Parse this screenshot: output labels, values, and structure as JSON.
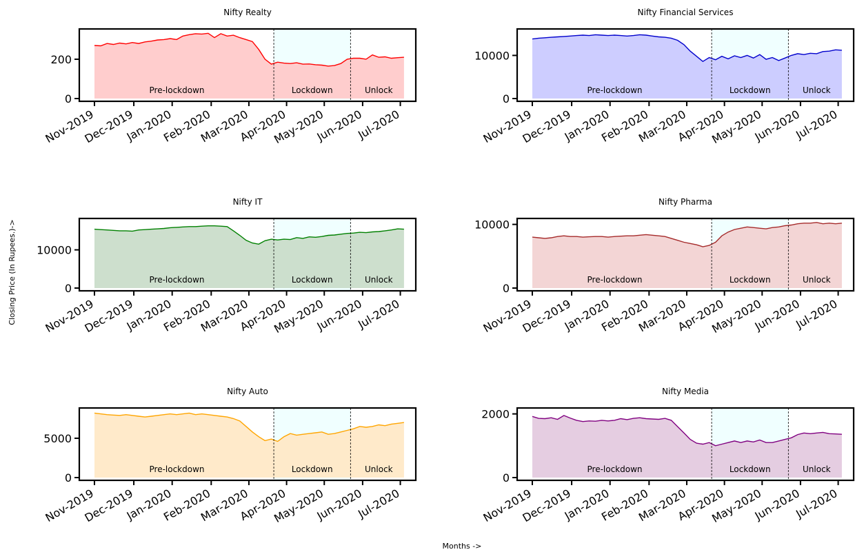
{
  "figure": {
    "ylabel": "Closing Price (In Rupees.)->",
    "xlabel": "Months ->"
  },
  "colors": {
    "lockdown_shade": "#f0ffff",
    "axes": "#000000"
  },
  "chart_data": [
    {
      "type": "area",
      "title": "Nifty Realty",
      "color": "#ff0000",
      "fill": "#ffc8c8",
      "ylim": [
        0,
        340
      ],
      "yticks": [
        0,
        200
      ],
      "ytick_labels": [
        "0",
        "200"
      ],
      "x_tick_labels": [
        "Nov-2019",
        "Dec-2019",
        "Jan-2020",
        "Feb-2020",
        "Mar-2020",
        "Apr-2020",
        "May-2020",
        "Jun-2020",
        "Jul-2020"
      ],
      "regions": [
        "Pre-lockdown",
        "Lockdown",
        "Unlock"
      ],
      "series": [
        {
          "values": [
            270,
            268,
            280,
            275,
            282,
            278,
            285,
            280,
            288,
            292,
            298,
            300,
            305,
            300,
            318,
            325,
            330,
            328,
            332,
            310,
            330,
            318,
            322,
            310,
            300,
            290,
            250,
            200,
            175,
            185,
            180,
            178,
            182,
            175,
            176,
            172,
            170,
            165,
            168,
            178,
            200,
            205,
            205,
            200,
            222,
            210,
            212,
            205,
            208,
            210
          ]
        }
      ]
    },
    {
      "type": "area",
      "title": "Nifty Financial Services",
      "color": "#0000cc",
      "fill": "#c8c8ff",
      "ylim": [
        0,
        15500
      ],
      "yticks": [
        0,
        10000
      ],
      "ytick_labels": [
        "0",
        "10000"
      ],
      "x_tick_labels": [
        "Nov-2019",
        "Dec-2019",
        "Jan-2020",
        "Feb-2020",
        "Mar-2020",
        "Apr-2020",
        "May-2020",
        "Jun-2020",
        "Jul-2020"
      ],
      "regions": [
        "Pre-lockdown",
        "Lockdown",
        "Unlock"
      ],
      "series": [
        {
          "values": [
            13800,
            14000,
            14100,
            14200,
            14300,
            14400,
            14500,
            14600,
            14700,
            14600,
            14800,
            14700,
            14600,
            14700,
            14600,
            14500,
            14600,
            14800,
            14700,
            14500,
            14300,
            14200,
            14000,
            13500,
            12500,
            11000,
            9800,
            8600,
            9500,
            9000,
            9800,
            9200,
            9900,
            9500,
            10000,
            9400,
            10200,
            9100,
            9500,
            8800,
            9400,
            10000,
            10400,
            10200,
            10500,
            10400,
            10900,
            11000,
            11300,
            11200
          ]
        }
      ]
    },
    {
      "type": "area",
      "title": "Nifty IT",
      "color": "#008000",
      "fill": "#c8dcc8",
      "ylim": [
        0,
        17500
      ],
      "yticks": [
        0,
        10000
      ],
      "ytick_labels": [
        "0",
        "10000"
      ],
      "x_tick_labels": [
        "Nov-2019",
        "Dec-2019",
        "Jan-2020",
        "Feb-2020",
        "Mar-2020",
        "Apr-2020",
        "May-2020",
        "Jun-2020",
        "Jul-2020"
      ],
      "regions": [
        "Pre-lockdown",
        "Lockdown",
        "Unlock"
      ],
      "series": [
        {
          "values": [
            15400,
            15300,
            15200,
            15100,
            15000,
            15000,
            14900,
            15200,
            15300,
            15400,
            15500,
            15600,
            15800,
            15900,
            16000,
            16100,
            16100,
            16200,
            16300,
            16300,
            16200,
            16100,
            15000,
            13800,
            12500,
            11800,
            11500,
            12400,
            12800,
            12600,
            12800,
            12700,
            13200,
            13000,
            13400,
            13300,
            13500,
            13800,
            13900,
            14100,
            14300,
            14400,
            14600,
            14500,
            14700,
            14800,
            15000,
            15200,
            15500,
            15400
          ]
        }
      ]
    },
    {
      "type": "area",
      "title": "Nifty Pharma",
      "color": "#a52a2a",
      "fill": "#f2d0d0",
      "ylim": [
        0,
        10500
      ],
      "yticks": [
        0,
        10000
      ],
      "ytick_labels": [
        "0",
        "10000"
      ],
      "x_tick_labels": [
        "Nov-2019",
        "Dec-2019",
        "Jan-2020",
        "Feb-2020",
        "Mar-2020",
        "Apr-2020",
        "May-2020",
        "Jun-2020",
        "Jul-2020"
      ],
      "regions": [
        "Pre-lockdown",
        "Lockdown",
        "Unlock"
      ],
      "series": [
        {
          "values": [
            8000,
            7900,
            7800,
            7900,
            8100,
            8200,
            8100,
            8100,
            8000,
            8050,
            8100,
            8100,
            8000,
            8100,
            8150,
            8200,
            8200,
            8300,
            8400,
            8300,
            8200,
            8100,
            7800,
            7500,
            7200,
            7000,
            6800,
            6500,
            6700,
            7200,
            8200,
            8800,
            9200,
            9400,
            9600,
            9500,
            9400,
            9300,
            9500,
            9600,
            9800,
            9900,
            10100,
            10200,
            10200,
            10300,
            10100,
            10200,
            10100,
            10200
          ]
        }
      ]
    },
    {
      "type": "area",
      "title": "Nifty Auto",
      "color": "#ffa500",
      "fill": "#ffe8c4",
      "ylim": [
        0,
        8500
      ],
      "yticks": [
        0,
        5000
      ],
      "ytick_labels": [
        "0",
        "5000"
      ],
      "x_tick_labels": [
        "Nov-2019",
        "Dec-2019",
        "Jan-2020",
        "Feb-2020",
        "Mar-2020",
        "Apr-2020",
        "May-2020",
        "Jun-2020",
        "Jul-2020"
      ],
      "regions": [
        "Pre-lockdown",
        "Lockdown",
        "Unlock"
      ],
      "series": [
        {
          "values": [
            8200,
            8100,
            8000,
            7950,
            7900,
            8000,
            7900,
            7800,
            7700,
            7800,
            7900,
            8000,
            8100,
            8000,
            8100,
            8200,
            8000,
            8100,
            8000,
            7900,
            7800,
            7700,
            7500,
            7200,
            6500,
            5800,
            5200,
            4700,
            4900,
            4600,
            5200,
            5600,
            5400,
            5500,
            5600,
            5700,
            5800,
            5500,
            5600,
            5800,
            6000,
            6200,
            6500,
            6400,
            6500,
            6700,
            6600,
            6800,
            6900,
            7000
          ]
        }
      ]
    },
    {
      "type": "area",
      "title": "Nifty Media",
      "color": "#800080",
      "fill": "#e2c8de",
      "ylim": [
        0,
        2100
      ],
      "yticks": [
        0,
        2000
      ],
      "ytick_labels": [
        "0",
        "2000"
      ],
      "x_tick_labels": [
        "Nov-2019",
        "Dec-2019",
        "Jan-2020",
        "Feb-2020",
        "Mar-2020",
        "Apr-2020",
        "May-2020",
        "Jun-2020",
        "Jul-2020"
      ],
      "regions": [
        "Pre-lockdown",
        "Lockdown",
        "Unlock"
      ],
      "series": [
        {
          "values": [
            1920,
            1860,
            1850,
            1880,
            1830,
            1950,
            1870,
            1800,
            1760,
            1780,
            1770,
            1800,
            1780,
            1800,
            1850,
            1820,
            1860,
            1880,
            1850,
            1840,
            1830,
            1860,
            1800,
            1600,
            1400,
            1200,
            1080,
            1050,
            1100,
            1000,
            1050,
            1100,
            1150,
            1100,
            1150,
            1120,
            1180,
            1100,
            1100,
            1150,
            1200,
            1250,
            1350,
            1400,
            1380,
            1400,
            1420,
            1380,
            1370,
            1360
          ]
        }
      ]
    }
  ]
}
